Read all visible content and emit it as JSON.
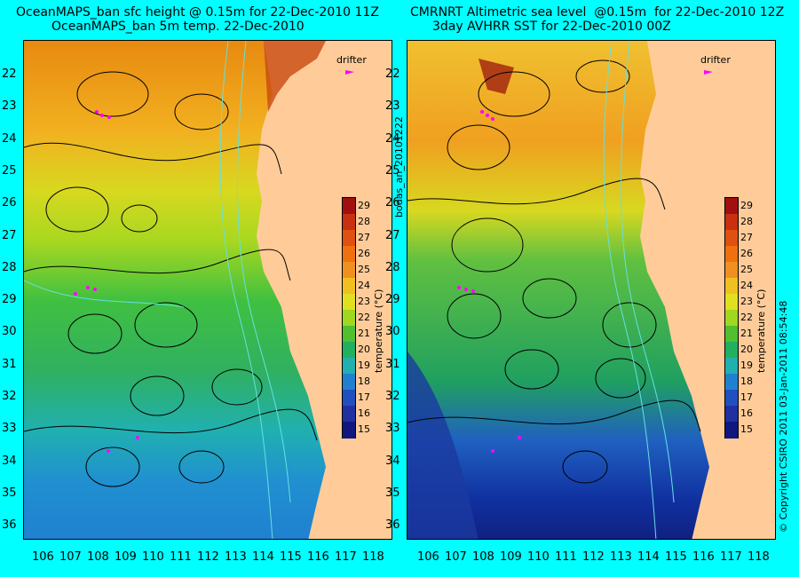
{
  "left_panel": {
    "title_line1": "OceanMAPS_ban sfc height @ 0.15m for 22-Dec-2010 11Z",
    "title_line2": "OceanMAPS_ban 5m temp. 22-Dec-2010"
  },
  "right_panel": {
    "title_line1": "CMRNRT Altimetric sea level  @0.15m  for 22-Dec-2010 12Z",
    "title_line2": "3day AVHRR SST for 22-Dec-2010 00Z"
  },
  "y_ticks": [
    "22",
    "23",
    "24",
    "25",
    "26",
    "27",
    "28",
    "29",
    "30",
    "31",
    "32",
    "33",
    "34",
    "35",
    "36"
  ],
  "x_ticks": [
    "106",
    "107",
    "108",
    "109",
    "110",
    "111",
    "112",
    "113",
    "114",
    "115",
    "116",
    "117",
    "118"
  ],
  "colorbar": {
    "ticks": [
      "29",
      "28",
      "27",
      "26",
      "25",
      "24",
      "23",
      "22",
      "21",
      "20",
      "19",
      "18",
      "17",
      "16",
      "15"
    ],
    "title": "temperature (°C)"
  },
  "drifter_label": "drifter",
  "middle_label": "bodas_an_20101222",
  "copyright": "© Copyright CSIRO 2011    03-Jan-2011 08:54:48",
  "colors": {
    "background": "#00ffff",
    "land": "#ffcc99",
    "drifter": "#ff00ff",
    "contour": "#000000",
    "bathymetry": "#66e0e0"
  }
}
